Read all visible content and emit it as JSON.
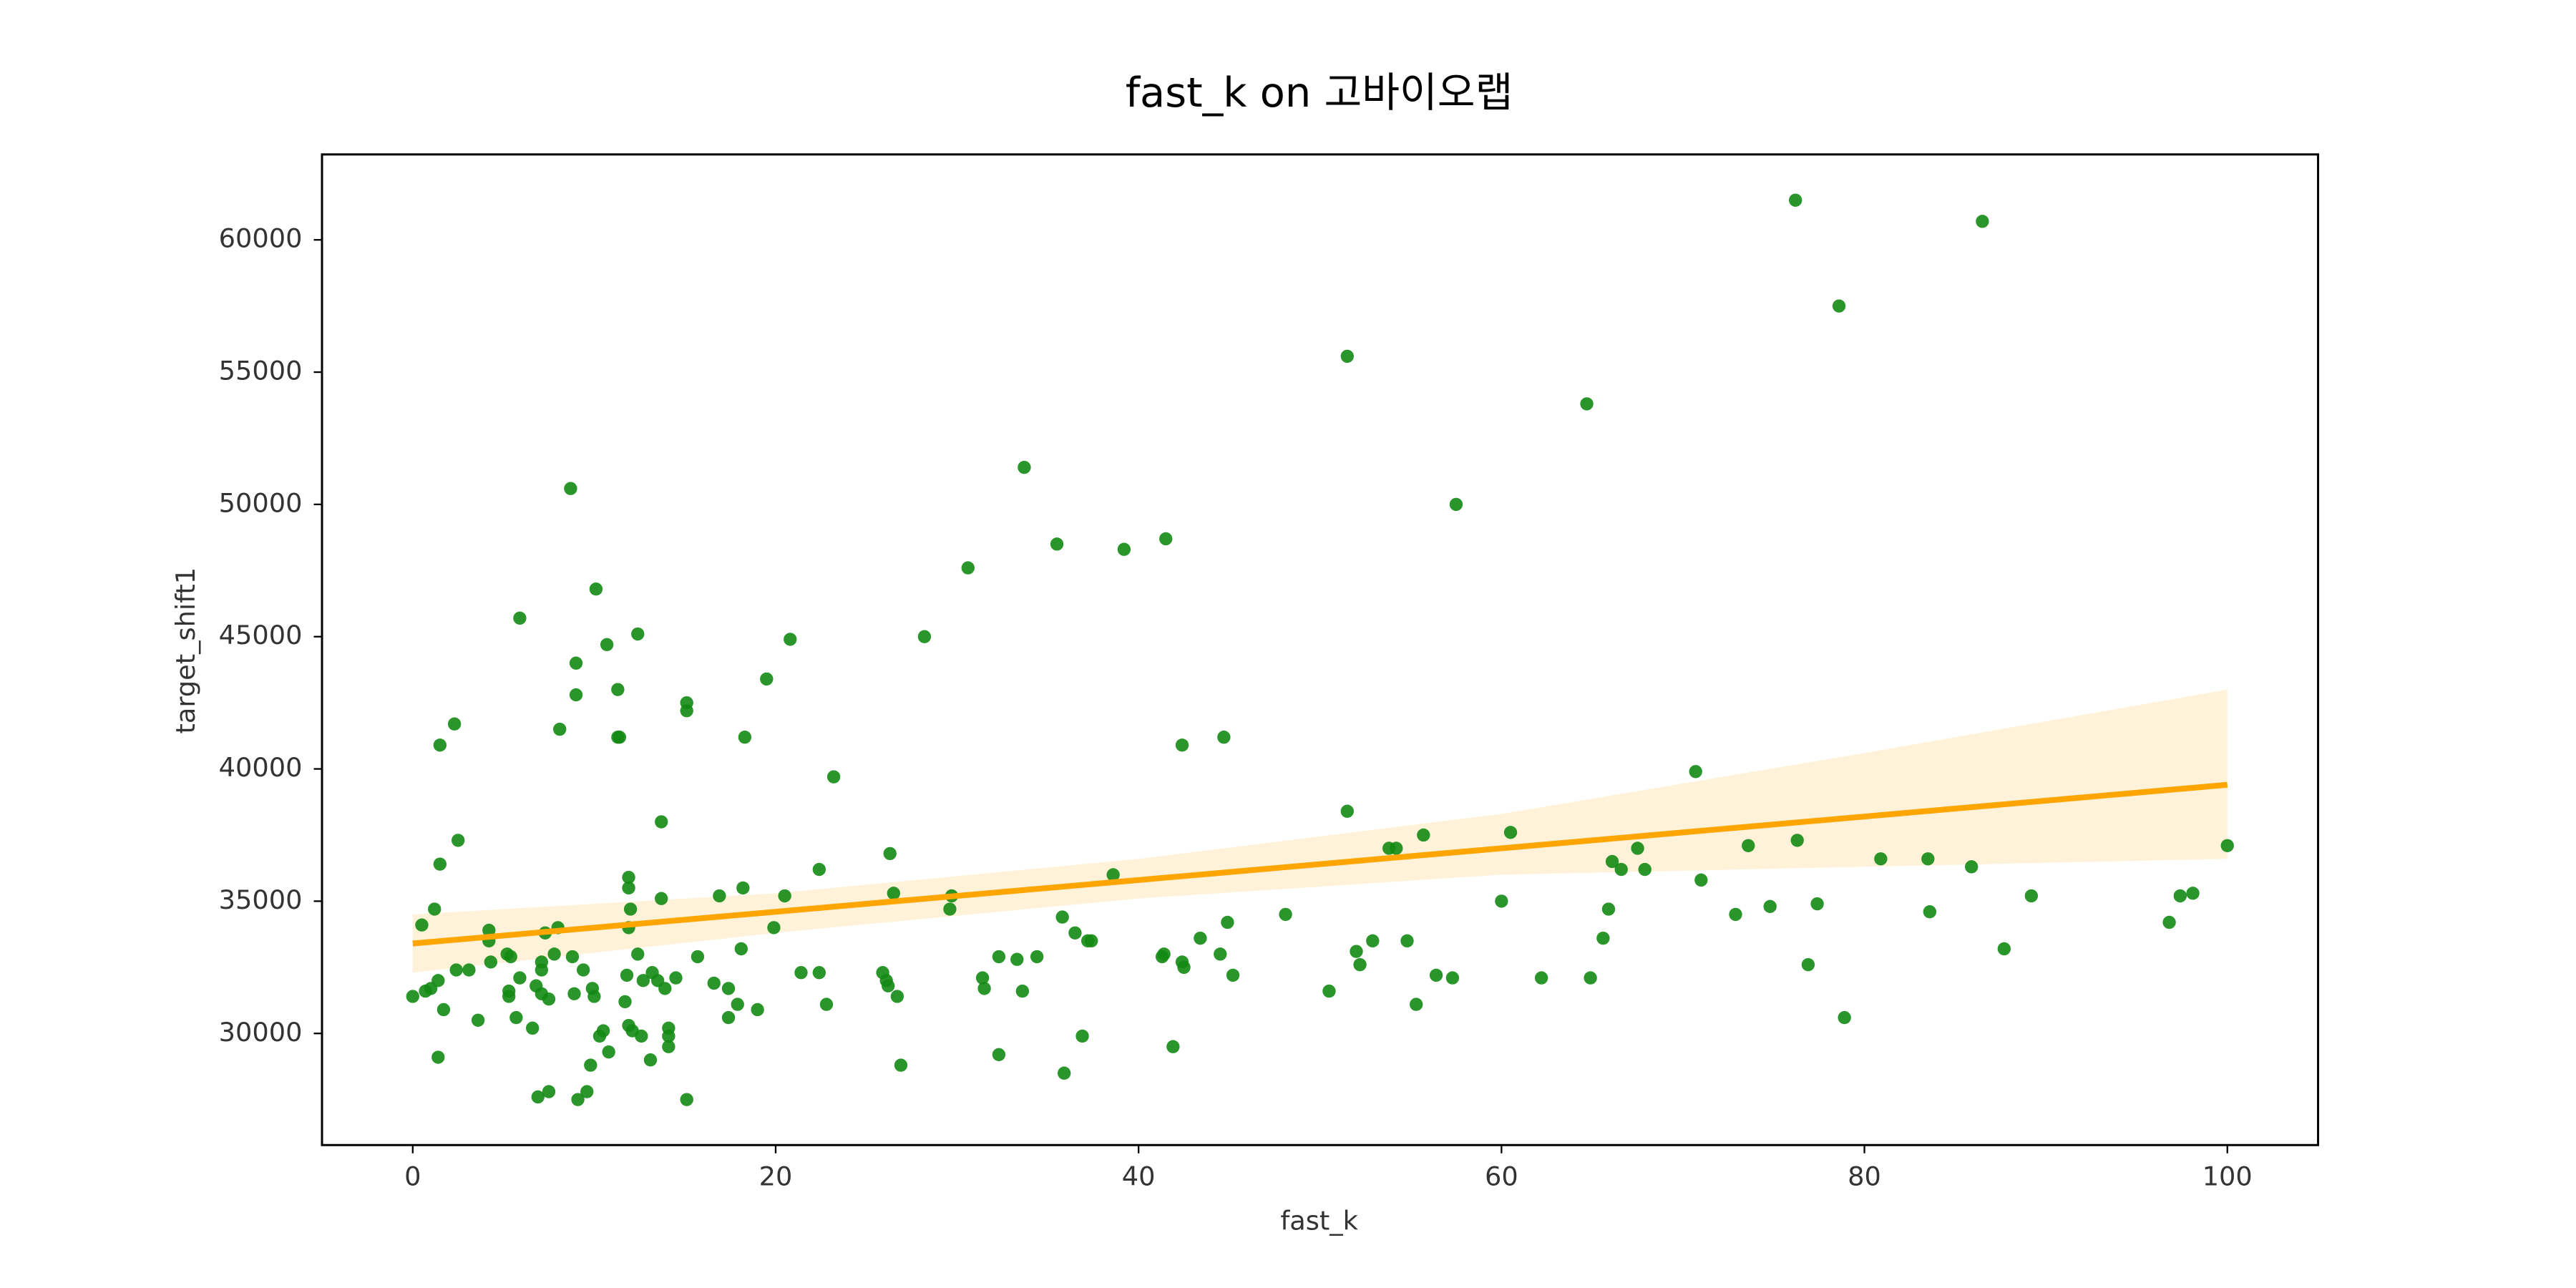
{
  "chart_data": {
    "type": "scatter",
    "title": "fast_k on 고바이오랩",
    "x_label": "fast_k",
    "y_label": "target_shift1",
    "xlim": [
      -5,
      105
    ],
    "ylim": [
      25780,
      63230
    ],
    "xticks": [
      0,
      20,
      40,
      60,
      80,
      100
    ],
    "yticks": [
      30000,
      35000,
      40000,
      45000,
      50000,
      55000,
      60000
    ],
    "color": "#138a13",
    "x": [
      0,
      0.5,
      0.7,
      1.0,
      1.2,
      1.4,
      1.4,
      1.5,
      1.5,
      1.7,
      2.3,
      2.4,
      2.5,
      3.1,
      3.6,
      4.2,
      4.2,
      4.3,
      5.2,
      5.3,
      5.4,
      5.3,
      5.7,
      5.9,
      5.9,
      6.6,
      6.8,
      6.9,
      7.1,
      7.1,
      7.1,
      7.5,
      7.3,
      7.5,
      7.8,
      8.1,
      8.0,
      8.7,
      8.8,
      8.9,
      9.0,
      9.0,
      9.1,
      9.4,
      9.6,
      9.8,
      9.9,
      10.0,
      10.1,
      10.3,
      10.5,
      10.7,
      10.8,
      11.3,
      11.3,
      11.4,
      11.7,
      11.8,
      11.9,
      11.9,
      11.9,
      12.0,
      11.9,
      12.1,
      12.4,
      12.4,
      12.6,
      12.7,
      13.1,
      13.2,
      13.5,
      13.7,
      13.7,
      13.9,
      14.1,
      14.1,
      14.1,
      14.5,
      15.1,
      15.1,
      15.1,
      15.7,
      16.6,
      16.9,
      17.4,
      17.4,
      17.9,
      18.1,
      18.2,
      18.3,
      19.0,
      19.5,
      19.9,
      20.5,
      20.8,
      21.4,
      22.4,
      22.4,
      22.8,
      23.2,
      25.9,
      26.1,
      26.2,
      26.3,
      26.5,
      26.7,
      26.9,
      28.2,
      29.6,
      29.7,
      30.6,
      31.4,
      31.5,
      32.3,
      32.3,
      33.3,
      33.6,
      33.7,
      34.4,
      35.5,
      35.8,
      35.9,
      36.5,
      36.9,
      37.2,
      37.4,
      38.6,
      39.2,
      41.3,
      41.4,
      41.5,
      41.9,
      42.4,
      42.4,
      42.5,
      43.4,
      44.5,
      44.7,
      44.9,
      45.2,
      48.1,
      50.5,
      51.5,
      51.5,
      52.0,
      52.2,
      52.9,
      53.8,
      54.2,
      54.8,
      55.3,
      55.7,
      56.4,
      57.3,
      57.5,
      60.0,
      60.5,
      62.2,
      64.7,
      64.9,
      65.6,
      65.9,
      66.1,
      66.6,
      67.5,
      67.9,
      70.7,
      71.0,
      72.9,
      73.6,
      74.8,
      76.2,
      76.3,
      76.9,
      77.4,
      78.6,
      78.9,
      80.9,
      83.5,
      83.6,
      85.9,
      86.5,
      87.7,
      89.2,
      96.8,
      97.4,
      98.1,
      100
    ],
    "values": [
      31400,
      34100,
      31600,
      31700,
      34700,
      29100,
      32000,
      36400,
      40900,
      30900,
      41700,
      32400,
      37300,
      32400,
      30500,
      33900,
      33500,
      32700,
      33000,
      31400,
      32900,
      31600,
      30600,
      32100,
      45700,
      30200,
      31800,
      27600,
      31500,
      32700,
      32400,
      27800,
      33800,
      31300,
      33000,
      41500,
      34000,
      50600,
      32900,
      31500,
      42800,
      44000,
      27500,
      32400,
      27800,
      28800,
      31700,
      31400,
      46800,
      29900,
      30100,
      44700,
      29300,
      43000,
      41200,
      41200,
      31200,
      32200,
      35900,
      30300,
      35500,
      34700,
      34000,
      30100,
      33000,
      45100,
      29900,
      32000,
      29000,
      32300,
      32000,
      38000,
      35100,
      31700,
      29500,
      30200,
      29900,
      32100,
      27500,
      42200,
      42500,
      32900,
      31900,
      35200,
      30600,
      31700,
      31100,
      33200,
      35500,
      41200,
      30900,
      43400,
      34000,
      35200,
      44900,
      32300,
      36200,
      32300,
      31100,
      39700,
      32300,
      32000,
      31800,
      36800,
      35300,
      31400,
      28800,
      45000,
      34700,
      35200,
      47600,
      32100,
      31700,
      29200,
      32900,
      32800,
      31600,
      51400,
      32900,
      48500,
      34400,
      28500,
      33800,
      29900,
      33500,
      33500,
      36000,
      48300,
      32900,
      33000,
      48700,
      29500,
      40900,
      32700,
      32500,
      33600,
      33000,
      41200,
      34200,
      32200,
      34500,
      31600,
      38400,
      55600,
      33100,
      32600,
      33500,
      37000,
      37000,
      33500,
      31100,
      37500,
      32200,
      32100,
      50000,
      35000,
      37600,
      32100,
      53800,
      32100,
      33600,
      34700,
      36500,
      36200,
      37000,
      36200,
      39900,
      35800,
      34500,
      37100,
      34800,
      61500,
      37300,
      32600,
      34900,
      57500,
      30600,
      36600,
      36600,
      34600,
      36300,
      60700,
      33200,
      35200,
      34200,
      35200,
      35300,
      37100
    ],
    "regression": {
      "color": "#ffa500",
      "x": [
        0,
        20,
        40,
        60,
        80,
        100
      ],
      "y": [
        33400,
        34600,
        35800,
        37000,
        38200,
        39400
      ],
      "lower": [
        32300,
        33800,
        35100,
        36000,
        36300,
        36600
      ],
      "upper": [
        34500,
        35300,
        36600,
        38300,
        40600,
        43000
      ]
    }
  }
}
